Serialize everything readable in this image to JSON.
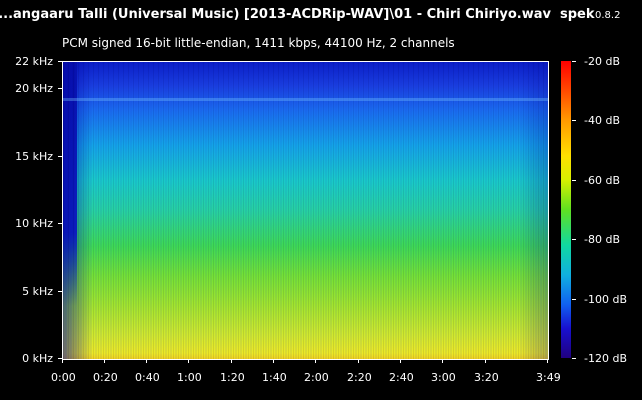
{
  "header": {
    "file_title": "...angaaru Talli (Universal Music) [2013-ACDRip-WAV]\\01 - Chiri Chiriyo.wav",
    "app_name": "spek",
    "app_version": "0.8.2"
  },
  "info": {
    "format_line": "PCM signed 16-bit little-endian, 1411 kbps, 44100 Hz, 2 channels"
  },
  "spectrogram": {
    "y_axis_ticks": [
      "22 kHz",
      "20 kHz",
      "15 kHz",
      "10 kHz",
      "5 kHz",
      "0 kHz"
    ],
    "x_axis_ticks": [
      "0:00",
      "0:20",
      "0:40",
      "1:00",
      "1:20",
      "1:40",
      "2:00",
      "2:20",
      "2:40",
      "3:00",
      "3:20",
      "3:49"
    ]
  },
  "colorbar": {
    "labels": [
      "-20 dB",
      "-40 dB",
      "-60 dB",
      "-80 dB",
      "-100 dB",
      "-120 dB"
    ]
  }
}
